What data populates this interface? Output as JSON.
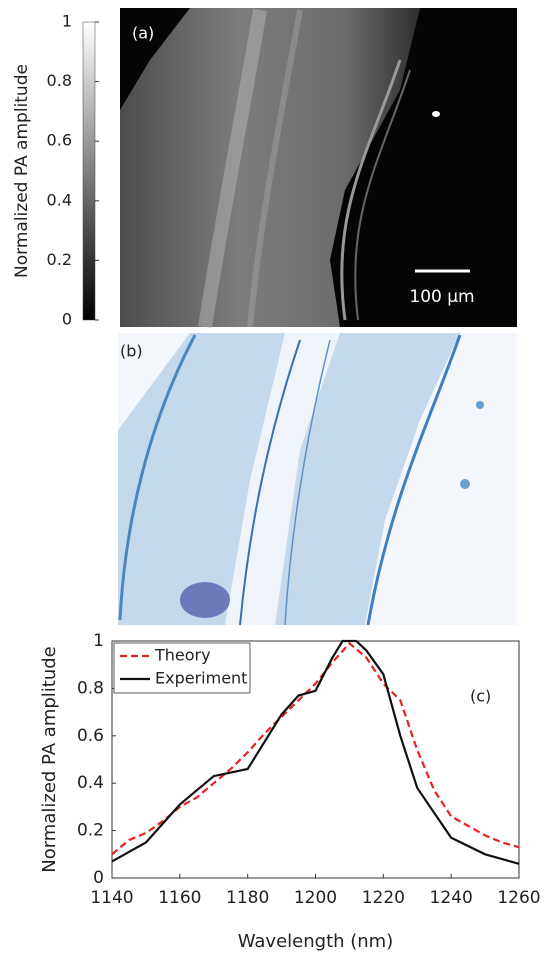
{
  "chart_data": [
    {
      "type": "image",
      "panel_label": "(a)",
      "scale_bar_label": "100 μm",
      "colorbar": {
        "label": "Normalized PA amplitude",
        "lim": [
          0,
          1
        ],
        "ticks": [
          0,
          0.2,
          0.4,
          0.6,
          0.8,
          1
        ]
      }
    },
    {
      "type": "image",
      "panel_label": "(b)"
    },
    {
      "type": "line",
      "panel_label": "(c)",
      "xlabel": "Wavelength (nm)",
      "ylabel": "Normalized PA amplitude",
      "xlim": [
        1140,
        1260
      ],
      "xticks": [
        1140,
        1160,
        1180,
        1200,
        1220,
        1240,
        1260
      ],
      "ylim": [
        0,
        1
      ],
      "yticks": [
        0,
        0.2,
        0.4,
        0.6,
        0.8,
        1
      ],
      "legend": "upper left",
      "series": [
        {
          "name": "Theory",
          "color": "#e8221e",
          "dash": true,
          "x": [
            1140,
            1145,
            1150,
            1155,
            1160,
            1165,
            1170,
            1175,
            1180,
            1185,
            1190,
            1195,
            1200,
            1205,
            1210,
            1215,
            1220,
            1225,
            1230,
            1235,
            1240,
            1245,
            1250,
            1255,
            1260
          ],
          "values": [
            0.1,
            0.16,
            0.19,
            0.24,
            0.3,
            0.34,
            0.4,
            0.46,
            0.53,
            0.61,
            0.68,
            0.75,
            0.82,
            0.91,
            0.99,
            0.93,
            0.82,
            0.75,
            0.54,
            0.37,
            0.26,
            0.22,
            0.18,
            0.15,
            0.13
          ]
        },
        {
          "name": "Experiment",
          "color": "#111111",
          "dash": false,
          "x": [
            1140,
            1150,
            1160,
            1170,
            1180,
            1190,
            1195,
            1200,
            1205,
            1208,
            1212,
            1215,
            1220,
            1225,
            1230,
            1240,
            1250,
            1260
          ],
          "values": [
            0.07,
            0.15,
            0.31,
            0.43,
            0.46,
            0.69,
            0.77,
            0.79,
            0.93,
            1.0,
            1.0,
            0.96,
            0.86,
            0.6,
            0.38,
            0.17,
            0.1,
            0.06
          ]
        }
      ]
    }
  ]
}
